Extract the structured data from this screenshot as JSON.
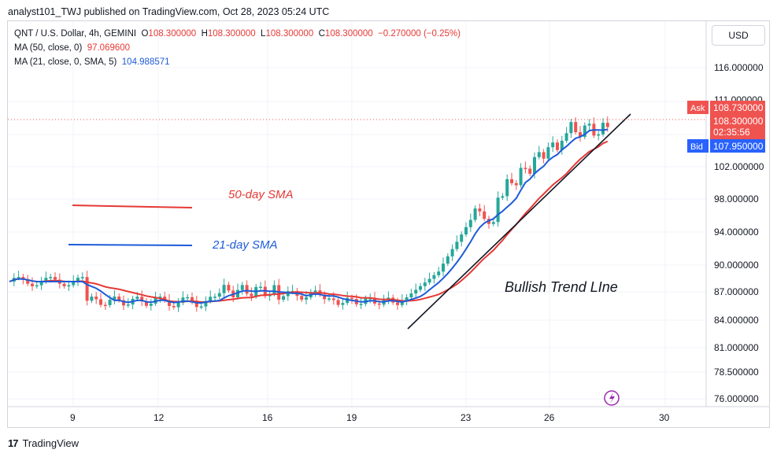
{
  "header": {
    "published": "analyst101_TWJ published on TradingView.com, Oct 28, 2023 05:24 UTC"
  },
  "legend": {
    "symbol": "QNT / U.S. Dollar, 4h, GEMINI",
    "o_label": "O",
    "o_value": "108.300000",
    "h_label": "H",
    "h_value": "108.300000",
    "l_label": "L",
    "l_value": "108.300000",
    "c_label": "C",
    "c_value": "108.300000",
    "change": "−0.270000 (−0.25%)",
    "ma50_label": "MA (50, close, 0)",
    "ma50_value": "97.069600",
    "ma21_label": "MA (21, close, 0, SMA, 5)",
    "ma21_value": "104.988571"
  },
  "currency_button": "USD",
  "footer": {
    "brand": "TradingView"
  },
  "colors": {
    "up": "#26a69a",
    "down": "#ef5350",
    "ma50": "#e53935",
    "ma21": "#1e5bd8",
    "ask": "#ef5350",
    "bid": "#2962ff"
  },
  "chart_data": {
    "type": "candlestick",
    "y_ticks": [
      "116.000000",
      "102.000000",
      "98.000000",
      "94.000000",
      "90.000000",
      "87.000000",
      "84.000000",
      "81.000000",
      "78.500000",
      "76.000000"
    ],
    "x_ticks": [
      "9",
      "12",
      "16",
      "19",
      "23",
      "26",
      "30"
    ],
    "annotations": [
      "50-day SMA",
      "21-day SMA",
      "Bullish Trend LIne"
    ],
    "price_labels": [
      {
        "tag": "Ask",
        "value": "108.730000"
      },
      {
        "tag": "",
        "value": "108.300000",
        "sub": "02:35:56"
      },
      {
        "tag": "Bid",
        "value": "107.950000"
      }
    ],
    "top_partial_tick": "111.000000",
    "ohlc_last": {
      "open": 108.3,
      "high": 108.3,
      "low": 108.3,
      "close": 108.3
    }
  }
}
